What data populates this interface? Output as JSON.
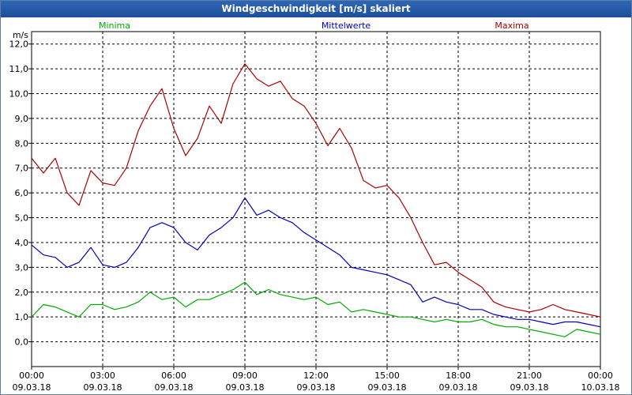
{
  "window": {
    "title": "Windgeschwindigkeit [m/s] skaliert"
  },
  "chart_data": {
    "type": "line",
    "title": "Windgeschwindigkeit [m/s] skaliert",
    "ylabel": "m/s",
    "ylim": [
      -1.0,
      12.5
    ],
    "xlim": [
      0,
      24
    ],
    "grid": true,
    "y_ticks": [
      "0,0",
      "1,0",
      "2,0",
      "3,0",
      "4,0",
      "5,0",
      "6,0",
      "7,0",
      "8,0",
      "9,0",
      "10,0",
      "11,0",
      "12,0"
    ],
    "x_ticks": [
      {
        "time": "00:00",
        "date": "09.03.18"
      },
      {
        "time": "03:00",
        "date": "09.03.18"
      },
      {
        "time": "06:00",
        "date": "09.03.18"
      },
      {
        "time": "09:00",
        "date": "09.03.18"
      },
      {
        "time": "12:00",
        "date": "09.03.18"
      },
      {
        "time": "15:00",
        "date": "09.03.18"
      },
      {
        "time": "18:00",
        "date": "09.03.18"
      },
      {
        "time": "21:00",
        "date": "09.03.18"
      },
      {
        "time": "00:00",
        "date": "10.03.18"
      }
    ],
    "x_hours": [
      0,
      0.5,
      1,
      1.5,
      2,
      2.5,
      3,
      3.5,
      4,
      4.5,
      5,
      5.5,
      6,
      6.5,
      7,
      7.5,
      8,
      8.5,
      9,
      9.5,
      10,
      10.5,
      11,
      11.5,
      12,
      12.5,
      13,
      13.5,
      14,
      14.5,
      15,
      15.5,
      16,
      16.5,
      17,
      17.5,
      18,
      18.5,
      19,
      19.5,
      20,
      20.5,
      21,
      21.5,
      22,
      22.5,
      23,
      23.5,
      24
    ],
    "series": [
      {
        "name": "Minima",
        "color": "#00aa00",
        "values": [
          1.0,
          1.5,
          1.4,
          1.2,
          1.0,
          1.5,
          1.5,
          1.3,
          1.4,
          1.6,
          2.0,
          1.7,
          1.8,
          1.4,
          1.7,
          1.7,
          1.9,
          2.1,
          2.4,
          1.9,
          2.1,
          1.9,
          1.8,
          1.7,
          1.8,
          1.5,
          1.6,
          1.2,
          1.3,
          1.2,
          1.1,
          1.0,
          1.0,
          0.9,
          0.8,
          0.9,
          0.8,
          0.8,
          0.9,
          0.7,
          0.6,
          0.6,
          0.5,
          0.4,
          0.3,
          0.2,
          0.5,
          0.4,
          0.3
        ]
      },
      {
        "name": "Mittelwerte",
        "color": "#0000bb",
        "values": [
          3.9,
          3.5,
          3.4,
          3.0,
          3.2,
          3.8,
          3.1,
          3.0,
          3.2,
          3.8,
          4.6,
          4.8,
          4.6,
          4.0,
          3.7,
          4.3,
          4.6,
          5.0,
          5.8,
          5.1,
          5.3,
          5.0,
          4.8,
          4.4,
          4.1,
          3.8,
          3.5,
          3.0,
          2.9,
          2.8,
          2.7,
          2.5,
          2.3,
          1.6,
          1.8,
          1.6,
          1.5,
          1.3,
          1.3,
          1.1,
          1.0,
          0.9,
          0.9,
          0.8,
          0.7,
          0.8,
          0.8,
          0.7,
          0.6
        ]
      },
      {
        "name": "Maxima",
        "color": "#aa0000",
        "values": [
          7.4,
          6.8,
          7.4,
          6.0,
          5.5,
          6.9,
          6.4,
          6.3,
          7.0,
          8.5,
          9.5,
          10.2,
          8.6,
          7.5,
          8.2,
          9.5,
          8.8,
          10.4,
          11.2,
          10.6,
          10.3,
          10.5,
          9.8,
          9.5,
          8.8,
          7.9,
          8.6,
          7.8,
          6.5,
          6.2,
          6.3,
          5.8,
          5.0,
          4.0,
          3.1,
          3.2,
          2.8,
          2.5,
          2.2,
          1.6,
          1.4,
          1.3,
          1.2,
          1.3,
          1.5,
          1.3,
          1.2,
          1.1,
          1.0
        ]
      }
    ]
  }
}
